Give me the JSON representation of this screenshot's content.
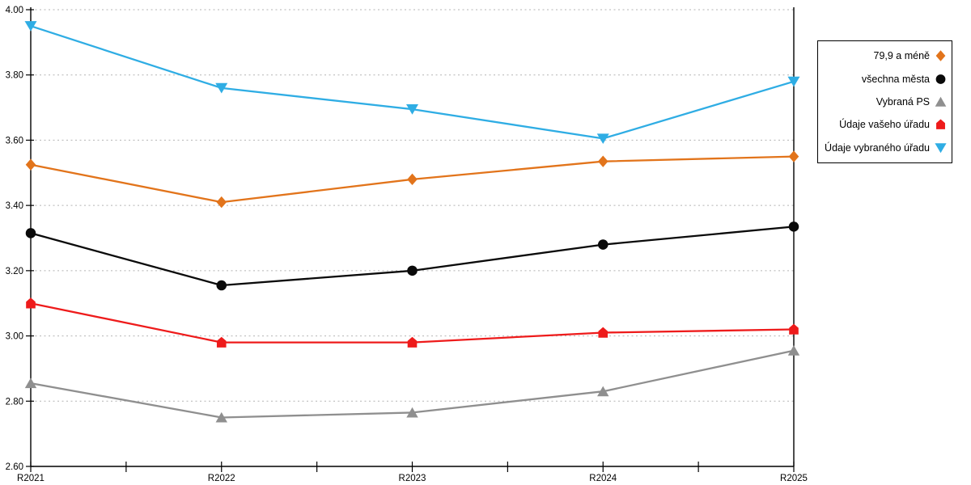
{
  "chart_data": {
    "type": "line",
    "title": "",
    "xlabel": "",
    "ylabel": "",
    "categories": [
      "R2021",
      "R2022",
      "R2023",
      "R2024",
      "R2025"
    ],
    "series": [
      {
        "name": "79,9 a méně",
        "color": "#e2741b",
        "marker": "diamond",
        "values": [
          3.525,
          3.41,
          3.48,
          3.535,
          3.55
        ]
      },
      {
        "name": "všechna města",
        "color": "#0a0a0a",
        "marker": "circle",
        "values": [
          3.315,
          3.155,
          3.2,
          3.28,
          3.335
        ]
      },
      {
        "name": "Vybraná PS",
        "color": "#8f8f8f",
        "marker": "triangle-up",
        "values": [
          2.855,
          2.75,
          2.765,
          2.83,
          2.955
        ]
      },
      {
        "name": "Údaje vašeho úřadu",
        "color": "#ee1b1b",
        "marker": "house",
        "values": [
          3.1,
          2.98,
          2.98,
          3.01,
          3.02
        ]
      },
      {
        "name": "Údaje vybraného úřadu",
        "color": "#2fade4",
        "marker": "triangle-down",
        "values": [
          3.95,
          3.76,
          3.695,
          3.605,
          3.78
        ]
      }
    ],
    "ylim": [
      2.6,
      4.0
    ],
    "ytick_step": 0.2,
    "ytick_labels": [
      "4.00",
      "3.80",
      "3.60",
      "3.40",
      "3.20",
      "3.00",
      "2.80",
      "2.60"
    ],
    "grid": "horizontal-dotted",
    "grid_color": "#b3b3b3",
    "axis_color": "#000000",
    "legend_position": "right-box"
  }
}
